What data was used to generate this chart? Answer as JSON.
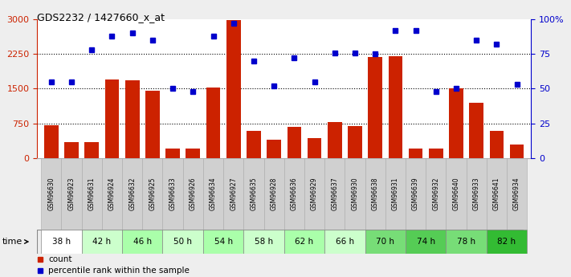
{
  "title": "GDS2232 / 1427660_x_at",
  "samples": [
    "GSM96630",
    "GSM96923",
    "GSM96631",
    "GSM96924",
    "GSM96632",
    "GSM96925",
    "GSM96633",
    "GSM96926",
    "GSM96634",
    "GSM96927",
    "GSM96635",
    "GSM96928",
    "GSM96636",
    "GSM96929",
    "GSM96637",
    "GSM96930",
    "GSM96638",
    "GSM96931",
    "GSM96639",
    "GSM96932",
    "GSM96640",
    "GSM96933",
    "GSM96641",
    "GSM96934"
  ],
  "time_groups": [
    {
      "label": "38 h",
      "indices": [
        0,
        1
      ],
      "color": "#ffffff"
    },
    {
      "label": "42 h",
      "indices": [
        2,
        3
      ],
      "color": "#ccffcc"
    },
    {
      "label": "46 h",
      "indices": [
        4,
        5
      ],
      "color": "#aaffaa"
    },
    {
      "label": "50 h",
      "indices": [
        6,
        7
      ],
      "color": "#ccffcc"
    },
    {
      "label": "54 h",
      "indices": [
        8,
        9
      ],
      "color": "#aaffaa"
    },
    {
      "label": "58 h",
      "indices": [
        10,
        11
      ],
      "color": "#ccffcc"
    },
    {
      "label": "62 h",
      "indices": [
        12,
        13
      ],
      "color": "#aaffaa"
    },
    {
      "label": "66 h",
      "indices": [
        14,
        15
      ],
      "color": "#ccffcc"
    },
    {
      "label": "70 h",
      "indices": [
        16,
        17
      ],
      "color": "#77dd77"
    },
    {
      "label": "74 h",
      "indices": [
        18,
        19
      ],
      "color": "#55cc55"
    },
    {
      "label": "78 h",
      "indices": [
        20,
        21
      ],
      "color": "#77dd77"
    },
    {
      "label": "82 h",
      "indices": [
        22,
        23
      ],
      "color": "#33bb33"
    }
  ],
  "bar_values": [
    700,
    340,
    340,
    1700,
    1680,
    1450,
    210,
    200,
    1520,
    2980,
    580,
    390,
    680,
    430,
    780,
    690,
    2180,
    2200,
    200,
    200,
    1500,
    1200,
    580,
    290
  ],
  "dot_values": [
    55,
    55,
    78,
    88,
    90,
    85,
    50,
    48,
    88,
    97,
    70,
    52,
    72,
    55,
    76,
    76,
    75,
    92,
    92,
    48,
    50,
    85,
    82,
    53
  ],
  "bar_color": "#cc2200",
  "dot_color": "#0000cc",
  "ylim_left": [
    0,
    3000
  ],
  "ylim_right": [
    0,
    100
  ],
  "yticks_left": [
    0,
    750,
    1500,
    2250,
    3000
  ],
  "yticks_right": [
    0,
    25,
    50,
    75,
    100
  ],
  "fig_bg": "#eeeeee",
  "plot_bg": "#ffffff"
}
